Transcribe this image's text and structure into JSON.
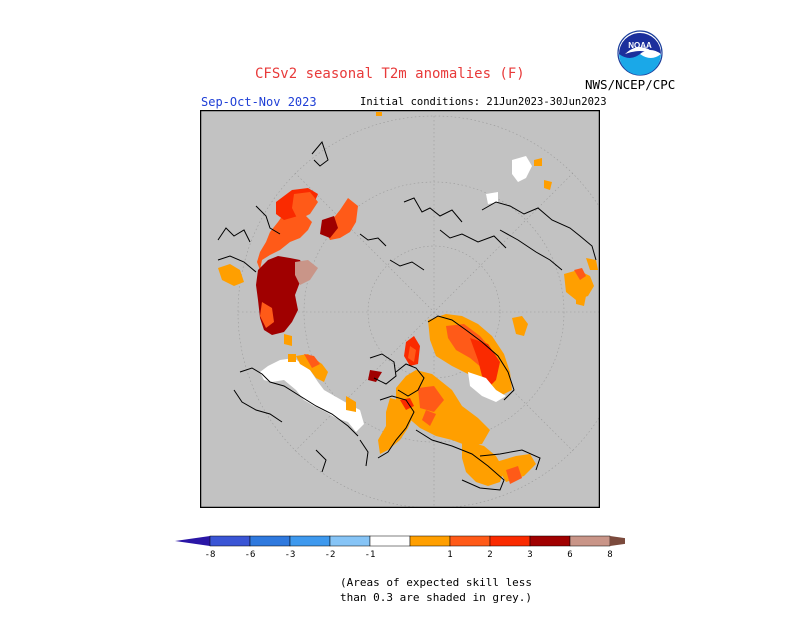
{
  "header": {
    "title": "CFSv2 seasonal T2m anomalies (F)",
    "agency": "NWS/NCEP/CPC",
    "season": "Sep-Oct-Nov 2023",
    "initial_conditions": "Initial conditions: 21Jun2023-30Jun2023",
    "logo_text": "NOAA"
  },
  "legend": {
    "colors_negative": [
      "#2a16a6",
      "#3a55d5",
      "#2f79de",
      "#3e99ee",
      "#86c4f6"
    ],
    "color_neutral": "#ffffff",
    "colors_positive": [
      "#ff9f00",
      "#ff5a18",
      "#fa2a00",
      "#a00000",
      "#c99588",
      "#7b4a3c"
    ],
    "labels": [
      "-8",
      "-6",
      "-3",
      "-2",
      "-1",
      "1",
      "2",
      "3",
      "6",
      "8"
    ]
  },
  "map": {
    "projection": "north polar stereographic",
    "background_color": "#c2c2c2",
    "skill_mask_color": "#c2c2c2"
  },
  "note": {
    "line1": "(Areas of expected skill less",
    "line2": "than 0.3 are shaded in grey.)"
  }
}
